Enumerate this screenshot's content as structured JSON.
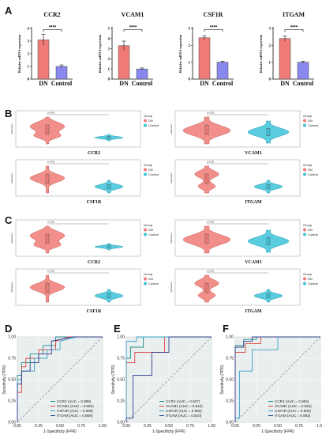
{
  "panel_labels": [
    "A",
    "B",
    "C",
    "D",
    "E",
    "F"
  ],
  "colors": {
    "dn": "#f07b76",
    "control": "#8888ee",
    "violin_dn": "#f07b76",
    "violin_control": "#3cc3da",
    "roc_bg": "#e9eeee"
  },
  "chart_data": [
    {
      "id": "A-CCR2",
      "type": "bar",
      "title": "CCR2",
      "ylabel": "Relative mRNA expersion",
      "categories": [
        "DN",
        "Control"
      ],
      "values": [
        3.1,
        1.0
      ],
      "errors": [
        0.45,
        0.12
      ],
      "ylim": [
        0,
        4
      ],
      "yticks": [
        "0",
        "1",
        "2",
        "3",
        "4"
      ],
      "significance": "****"
    },
    {
      "id": "A-VCAM1",
      "type": "bar",
      "title": "VCAM1",
      "ylabel": "Relative mRNA expersion",
      "categories": [
        "DN",
        "Control"
      ],
      "values": [
        3.3,
        1.0
      ],
      "errors": [
        0.45,
        0.1
      ],
      "ylim": [
        0,
        5
      ],
      "yticks": [
        "0",
        "1",
        "2",
        "3",
        "4",
        "5"
      ],
      "significance": "****"
    },
    {
      "id": "A-CSF1R",
      "type": "bar",
      "title": "CSF1R",
      "ylabel": "Relative mRNA expersion",
      "categories": [
        "DN",
        "Control"
      ],
      "values": [
        2.45,
        1.0
      ],
      "errors": [
        0.12,
        0.06
      ],
      "ylim": [
        0,
        3
      ],
      "yticks": [
        "0",
        "1",
        "2",
        "3"
      ],
      "significance": "****"
    },
    {
      "id": "A-ITGAM",
      "type": "bar",
      "title": "ITGAM",
      "ylabel": "Relative mRNA expersion",
      "categories": [
        "DN",
        "Control"
      ],
      "values": [
        2.4,
        1.0
      ],
      "errors": [
        0.15,
        0.06
      ],
      "ylim": [
        0,
        3
      ],
      "yticks": [
        "0",
        "1",
        "2",
        "3"
      ],
      "significance": "****"
    },
    {
      "id": "D",
      "type": "line",
      "xlabel": "1-Specificity (FPR)",
      "ylabel": "Sensitivity (TPR)",
      "xlim": [
        0,
        1
      ],
      "ylim": [
        0,
        1
      ],
      "xticks": [
        "0.00",
        "0.25",
        "0.50",
        "0.75",
        "1.00"
      ],
      "yticks": [
        "0.00",
        "0.25",
        "0.50",
        "0.75",
        "1.00"
      ],
      "series": [
        {
          "name": "CCR2 (AUC = 0.889)",
          "color": "#1f8a8a",
          "x": [
            0,
            0,
            0.05,
            0.05,
            0.15,
            0.15,
            0.3,
            0.3,
            0.45,
            0.45,
            0.55,
            1
          ],
          "y": [
            0,
            0.55,
            0.55,
            0.7,
            0.7,
            0.8,
            0.8,
            0.9,
            0.9,
            1,
            1,
            1
          ]
        },
        {
          "name": "VCAM1 (AUC = 0.881)",
          "color": "#e04040",
          "x": [
            0,
            0,
            0.05,
            0.05,
            0.1,
            0.1,
            0.25,
            0.25,
            0.45,
            0.45,
            0.6,
            1
          ],
          "y": [
            0,
            0.35,
            0.35,
            0.65,
            0.65,
            0.75,
            0.75,
            0.85,
            0.85,
            0.95,
            1,
            1
          ]
        },
        {
          "name": "CSF1R (AUC = 0.839)",
          "color": "#3aa0c8",
          "x": [
            0,
            0,
            0.05,
            0.05,
            0.2,
            0.2,
            0.35,
            0.35,
            0.5,
            0.5,
            0.7,
            1
          ],
          "y": [
            0,
            0.5,
            0.5,
            0.6,
            0.6,
            0.75,
            0.75,
            0.85,
            0.85,
            0.95,
            1,
            1
          ]
        },
        {
          "name": "ITGAM (AUC = 0.869)",
          "color": "#2f3f8f",
          "x": [
            0,
            0,
            0.05,
            0.05,
            0.15,
            0.15,
            0.25,
            0.25,
            0.4,
            0.4,
            0.65,
            1
          ],
          "y": [
            0,
            0.45,
            0.45,
            0.6,
            0.6,
            0.7,
            0.7,
            0.8,
            0.8,
            0.95,
            1,
            1
          ]
        }
      ]
    },
    {
      "id": "E",
      "type": "line",
      "xlabel": "1-Specificity (FPR)",
      "ylabel": "Sensitivity (TPR)",
      "xlim": [
        0,
        1
      ],
      "ylim": [
        0,
        1
      ],
      "xticks": [
        "0.00",
        "0.25",
        "0.50",
        "0.75",
        "1.00"
      ],
      "yticks": [
        "0.00",
        "0.25",
        "0.50",
        "0.75",
        "1.00"
      ],
      "series": [
        {
          "name": "CCR2 (AUC = 0.937)",
          "color": "#1f8a8a",
          "x": [
            0,
            0,
            0.05,
            0.05,
            0.2,
            0.2,
            0.4,
            1
          ],
          "y": [
            0,
            0.75,
            0.75,
            0.88,
            0.88,
            1,
            1,
            1
          ]
        },
        {
          "name": "VCAM1 (AUC = 0.913)",
          "color": "#e04040",
          "x": [
            0,
            0,
            0.1,
            0.1,
            0.45,
            0.45,
            1
          ],
          "y": [
            0,
            0.7,
            0.7,
            0.82,
            0.82,
            1,
            1
          ]
        },
        {
          "name": "CSF1R (AUC = 0.992)",
          "color": "#3aa0c8",
          "x": [
            0,
            0,
            0.12,
            0.12,
            1
          ],
          "y": [
            0,
            0.95,
            0.95,
            1,
            1
          ]
        },
        {
          "name": "ITGAM (AUC = 0.810)",
          "color": "#2f3f8f",
          "x": [
            0,
            0,
            0.08,
            0.08,
            0.3,
            0.3,
            0.5,
            0.5,
            1
          ],
          "y": [
            0,
            0.05,
            0.05,
            0.55,
            0.55,
            0.82,
            0.82,
            1,
            1
          ]
        }
      ]
    },
    {
      "id": "F",
      "type": "line",
      "xlabel": "1-Specificity (FPR)",
      "ylabel": "Sensitivity (TPR)",
      "xlim": [
        0,
        1
      ],
      "ylim": [
        0,
        1
      ],
      "xticks": [
        "0.00",
        "0.25",
        "0.50",
        "0.75",
        "1.00"
      ],
      "yticks": [
        "0.00",
        "0.25",
        "0.50",
        "0.75",
        "1.00"
      ],
      "series": [
        {
          "name": "CCR2 (AUC = 0.983)",
          "color": "#1f8a8a",
          "x": [
            0,
            0,
            0.1,
            0.1,
            0.25,
            0.25,
            1
          ],
          "y": [
            0,
            0.9,
            0.9,
            0.97,
            0.97,
            1,
            1
          ]
        },
        {
          "name": "VCAM1 (AUC = 0.925)",
          "color": "#e04040",
          "x": [
            0,
            0,
            0.12,
            0.12,
            0.3,
            0.3,
            1
          ],
          "y": [
            0,
            0.82,
            0.82,
            0.92,
            0.92,
            1,
            1
          ]
        },
        {
          "name": "CSF1R (AUC = 0.800)",
          "color": "#3aa0c8",
          "x": [
            0,
            0,
            0.05,
            0.05,
            0.2,
            0.2,
            0.5,
            0.5,
            1
          ],
          "y": [
            0,
            0.05,
            0.05,
            0.6,
            0.6,
            0.85,
            0.85,
            1,
            1
          ]
        },
        {
          "name": "ITGAM (AUC = 0.983)",
          "color": "#2f3f8f",
          "x": [
            0,
            0,
            0.1,
            0.1,
            0.2,
            0.2,
            1
          ],
          "y": [
            0,
            0.88,
            0.88,
            0.95,
            0.95,
            1,
            1
          ]
        }
      ]
    }
  ],
  "violins": {
    "legend_title": "Group",
    "legend_items": [
      "DN",
      "Control"
    ],
    "ylabel": "Expression",
    "pvalue_text": "p<0.001",
    "panels": [
      {
        "id": "B-CCR2",
        "title": "CCR2",
        "shape": "multi"
      },
      {
        "id": "B-VCAM1",
        "title": "VCAM1",
        "shape": "wide"
      },
      {
        "id": "B-CSF1R",
        "title": "CSF1R",
        "shape": "mid"
      },
      {
        "id": "B-ITGAM",
        "title": "ITGAM",
        "shape": "tall"
      },
      {
        "id": "C-CCR2",
        "title": "CCR2",
        "shape": "multi"
      },
      {
        "id": "C-VCAM1",
        "title": "VCAM1",
        "shape": "wide"
      },
      {
        "id": "C-CSF1R",
        "title": "CSF1R",
        "shape": "mid"
      },
      {
        "id": "C-ITGAM",
        "title": "ITGAM",
        "shape": "tall"
      }
    ]
  }
}
